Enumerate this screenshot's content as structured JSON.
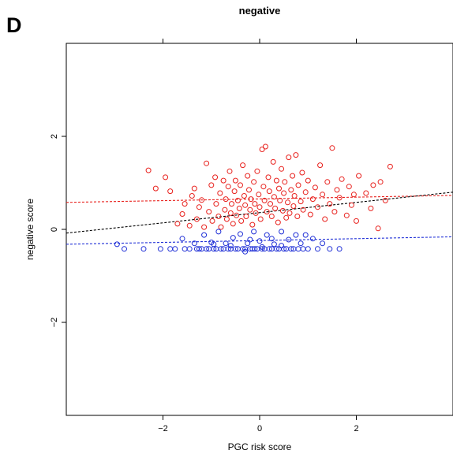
{
  "panel_label": "D",
  "chart_data": {
    "type": "scatter",
    "title": "negative",
    "xlabel": "PGC risk score",
    "ylabel": "negative score",
    "xlim": [
      -4.0,
      4.0
    ],
    "ylim": [
      -4.0,
      4.0
    ],
    "xticks": [
      -2,
      0,
      2
    ],
    "xtick_labels": [
      "−2",
      "0",
      "2"
    ],
    "yticks": [
      -2,
      0,
      2
    ],
    "ytick_labels": [
      "−2",
      "0",
      "2"
    ],
    "top_ticks": [
      -2,
      0,
      2
    ],
    "grid": false,
    "legend": "none",
    "series": [
      {
        "color": "#e8211d",
        "marker": "open-circle",
        "points": [
          [
            -2.3,
            1.27
          ],
          [
            -2.15,
            0.88
          ],
          [
            -1.95,
            1.12
          ],
          [
            -1.85,
            0.82
          ],
          [
            -1.7,
            0.12
          ],
          [
            -1.6,
            0.33
          ],
          [
            -1.55,
            0.55
          ],
          [
            -1.45,
            0.08
          ],
          [
            -1.4,
            0.72
          ],
          [
            -1.35,
            0.88
          ],
          [
            -1.3,
            0.22
          ],
          [
            -1.25,
            0.48
          ],
          [
            -1.2,
            0.63
          ],
          [
            -1.15,
            0.05
          ],
          [
            -1.1,
            1.42
          ],
          [
            -1.05,
            0.38
          ],
          [
            -1.0,
            0.95
          ],
          [
            -0.98,
            0.18
          ],
          [
            -0.92,
            1.12
          ],
          [
            -0.9,
            0.55
          ],
          [
            -0.85,
            0.28
          ],
          [
            -0.82,
            0.78
          ],
          [
            -0.8,
            0.05
          ],
          [
            -0.75,
            1.05
          ],
          [
            -0.72,
            0.42
          ],
          [
            -0.7,
            0.65
          ],
          [
            -0.68,
            0.22
          ],
          [
            -0.65,
            0.92
          ],
          [
            -0.62,
            1.25
          ],
          [
            -0.6,
            0.35
          ],
          [
            -0.58,
            0.55
          ],
          [
            -0.55,
            0.12
          ],
          [
            -0.52,
            0.82
          ],
          [
            -0.5,
            1.05
          ],
          [
            -0.48,
            0.3
          ],
          [
            -0.45,
            0.62
          ],
          [
            -0.42,
            0.45
          ],
          [
            -0.4,
            0.95
          ],
          [
            -0.38,
            0.18
          ],
          [
            -0.35,
            1.38
          ],
          [
            -0.32,
            0.72
          ],
          [
            -0.3,
            0.52
          ],
          [
            -0.28,
            0.28
          ],
          [
            -0.25,
            1.15
          ],
          [
            -0.22,
            0.85
          ],
          [
            -0.2,
            0.42
          ],
          [
            -0.18,
            0.65
          ],
          [
            -0.15,
            0.1
          ],
          [
            -0.12,
            1.02
          ],
          [
            -0.1,
            0.55
          ],
          [
            -0.08,
            0.35
          ],
          [
            -0.05,
            1.25
          ],
          [
            -0.02,
            0.75
          ],
          [
            0.0,
            0.48
          ],
          [
            0.02,
            0.22
          ],
          [
            0.05,
            1.72
          ],
          [
            0.08,
            0.92
          ],
          [
            0.1,
            0.62
          ],
          [
            0.12,
            1.78
          ],
          [
            0.15,
            0.38
          ],
          [
            0.18,
            1.12
          ],
          [
            0.2,
            0.82
          ],
          [
            0.22,
            0.55
          ],
          [
            0.25,
            0.28
          ],
          [
            0.28,
            1.45
          ],
          [
            0.3,
            0.7
          ],
          [
            0.32,
            0.45
          ],
          [
            0.35,
            1.05
          ],
          [
            0.38,
            0.15
          ],
          [
            0.4,
            0.88
          ],
          [
            0.42,
            0.62
          ],
          [
            0.45,
            1.3
          ],
          [
            0.48,
            0.4
          ],
          [
            0.5,
            0.78
          ],
          [
            0.52,
            1.02
          ],
          [
            0.55,
            0.25
          ],
          [
            0.58,
            0.58
          ],
          [
            0.6,
            1.55
          ],
          [
            0.62,
            0.35
          ],
          [
            0.65,
            0.85
          ],
          [
            0.68,
            1.15
          ],
          [
            0.7,
            0.5
          ],
          [
            0.72,
            0.72
          ],
          [
            0.75,
            1.6
          ],
          [
            0.78,
            0.28
          ],
          [
            0.8,
            0.95
          ],
          [
            0.85,
            0.6
          ],
          [
            0.88,
            1.22
          ],
          [
            0.9,
            0.42
          ],
          [
            0.95,
            0.8
          ],
          [
            1.0,
            1.05
          ],
          [
            1.05,
            0.32
          ],
          [
            1.1,
            0.65
          ],
          [
            1.15,
            0.9
          ],
          [
            1.2,
            0.48
          ],
          [
            1.25,
            1.38
          ],
          [
            1.3,
            0.75
          ],
          [
            1.35,
            0.22
          ],
          [
            1.4,
            1.02
          ],
          [
            1.45,
            0.55
          ],
          [
            1.5,
            1.75
          ],
          [
            1.55,
            0.38
          ],
          [
            1.6,
            0.85
          ],
          [
            1.65,
            0.68
          ],
          [
            1.7,
            1.08
          ],
          [
            1.8,
            0.3
          ],
          [
            1.85,
            0.92
          ],
          [
            1.9,
            0.52
          ],
          [
            1.95,
            0.75
          ],
          [
            2.0,
            0.18
          ],
          [
            2.05,
            1.15
          ],
          [
            2.2,
            0.78
          ],
          [
            2.3,
            0.45
          ],
          [
            2.35,
            0.95
          ],
          [
            2.45,
            0.02
          ],
          [
            2.5,
            1.02
          ],
          [
            2.6,
            0.62
          ],
          [
            2.7,
            1.35
          ]
        ]
      },
      {
        "color": "#1f2fd6",
        "marker": "open-circle",
        "points": [
          [
            -2.95,
            -0.32
          ],
          [
            -2.8,
            -0.42
          ],
          [
            -2.4,
            -0.42
          ],
          [
            -2.05,
            -0.42
          ],
          [
            -1.85,
            -0.42
          ],
          [
            -1.75,
            -0.42
          ],
          [
            -1.6,
            -0.2
          ],
          [
            -1.55,
            -0.42
          ],
          [
            -1.45,
            -0.42
          ],
          [
            -1.35,
            -0.3
          ],
          [
            -1.3,
            -0.42
          ],
          [
            -1.25,
            -0.42
          ],
          [
            -1.2,
            -0.42
          ],
          [
            -1.15,
            -0.12
          ],
          [
            -1.1,
            -0.42
          ],
          [
            -1.05,
            -0.42
          ],
          [
            -1.0,
            -0.28
          ],
          [
            -0.95,
            -0.42
          ],
          [
            -0.9,
            -0.42
          ],
          [
            -0.85,
            -0.05
          ],
          [
            -0.8,
            -0.42
          ],
          [
            -0.75,
            -0.42
          ],
          [
            -0.7,
            -0.3
          ],
          [
            -0.65,
            -0.42
          ],
          [
            -0.6,
            -0.42
          ],
          [
            -0.55,
            -0.18
          ],
          [
            -0.5,
            -0.42
          ],
          [
            -0.45,
            -0.42
          ],
          [
            -0.4,
            -0.1
          ],
          [
            -0.35,
            -0.42
          ],
          [
            -0.3,
            -0.42
          ],
          [
            -0.25,
            -0.3
          ],
          [
            -0.2,
            -0.42
          ],
          [
            -0.15,
            -0.42
          ],
          [
            -0.12,
            -0.05
          ],
          [
            -0.1,
            -0.42
          ],
          [
            -0.05,
            -0.42
          ],
          [
            0.0,
            -0.25
          ],
          [
            0.05,
            -0.42
          ],
          [
            0.1,
            -0.42
          ],
          [
            0.15,
            -0.12
          ],
          [
            0.2,
            -0.42
          ],
          [
            0.25,
            -0.42
          ],
          [
            0.3,
            -0.32
          ],
          [
            0.35,
            -0.42
          ],
          [
            0.4,
            -0.42
          ],
          [
            0.45,
            -0.05
          ],
          [
            0.5,
            -0.42
          ],
          [
            0.55,
            -0.42
          ],
          [
            0.6,
            -0.22
          ],
          [
            0.65,
            -0.42
          ],
          [
            0.7,
            -0.42
          ],
          [
            0.75,
            -0.12
          ],
          [
            0.8,
            -0.42
          ],
          [
            0.85,
            -0.3
          ],
          [
            0.9,
            -0.42
          ],
          [
            1.0,
            -0.42
          ],
          [
            1.1,
            -0.2
          ],
          [
            1.2,
            -0.42
          ],
          [
            1.3,
            -0.3
          ],
          [
            1.45,
            -0.42
          ],
          [
            1.65,
            -0.42
          ],
          [
            -0.3,
            -0.48
          ],
          [
            0.05,
            -0.38
          ],
          [
            -0.6,
            -0.35
          ],
          [
            0.45,
            -0.35
          ],
          [
            -0.95,
            -0.32
          ],
          [
            0.95,
            -0.12
          ],
          [
            -0.2,
            -0.22
          ],
          [
            0.25,
            -0.2
          ]
        ]
      }
    ],
    "fit_lines": [
      {
        "color": "#e8211d",
        "x": [
          -4.0,
          4.0
        ],
        "y": [
          0.58,
          0.73
        ]
      },
      {
        "color": "#000000",
        "x": [
          -4.0,
          4.0
        ],
        "y": [
          -0.08,
          0.8
        ]
      },
      {
        "color": "#1f2fd6",
        "x": [
          -4.0,
          4.0
        ],
        "y": [
          -0.32,
          -0.16
        ]
      }
    ]
  }
}
